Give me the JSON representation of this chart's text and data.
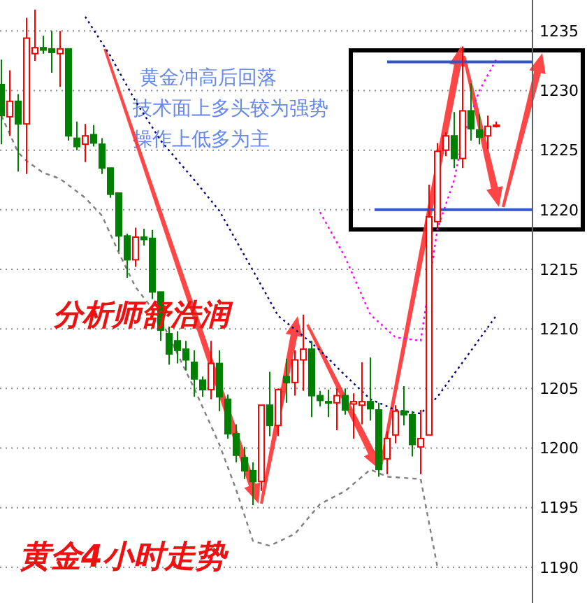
{
  "chart_data": {
    "type": "candlestick",
    "title": "黄金4小时走势",
    "annotations": [
      "黄金冲高后回落",
      "技术面上多头较为强势",
      "操作上低多为主",
      "分析师舒浩润"
    ],
    "categories": [
      null,
      null,
      null,
      null,
      null,
      null,
      null,
      null,
      null,
      null,
      null,
      null,
      null,
      null,
      null,
      null,
      null,
      null,
      null,
      null,
      null,
      null,
      null,
      null,
      null,
      null,
      null,
      null,
      null,
      null,
      null,
      null,
      null,
      null,
      null,
      null,
      null,
      null,
      null,
      null,
      null,
      null,
      null,
      null,
      null,
      null,
      null,
      null,
      null,
      null,
      null,
      null,
      null,
      null,
      null,
      null,
      null,
      null,
      null,
      null
    ],
    "ohlc": [
      [
        1230.5,
        1232.6,
        1225.5,
        1227.9
      ],
      [
        1227.8,
        1231.7,
        1226.2,
        1229.1
      ],
      [
        1229.1,
        1229.7,
        1223.2,
        1227.2
      ],
      [
        1227.2,
        1236.1,
        1223,
        1234.4
      ],
      [
        1233.1,
        1236.8,
        1232.5,
        1233.6
      ],
      [
        1233.6,
        1234.6,
        1233.1,
        1233.4
      ],
      [
        1233.5,
        1235,
        1231.5,
        1233.2
      ],
      [
        1233.1,
        1235,
        1230.3,
        1233.5
      ],
      [
        1233.5,
        1233.5,
        1225.8,
        1226.2
      ],
      [
        1226,
        1227.4,
        1225,
        1225.3
      ],
      [
        1225.5,
        1227.2,
        1224,
        1226.2
      ],
      [
        1226.3,
        1227.1,
        1225.3,
        1225.6
      ],
      [
        1225.5,
        1226,
        1223,
        1223.5
      ],
      [
        1223.5,
        1223.5,
        1221,
        1221.3
      ],
      [
        1221.4,
        1221.4,
        1216.5,
        1217.8
      ],
      [
        1217.8,
        1218,
        1214.3,
        1215.8
      ],
      [
        1215.8,
        1218.5,
        1215.2,
        1217.7
      ],
      [
        1217.7,
        1218.4,
        1217,
        1217.5
      ],
      [
        1217.6,
        1218.3,
        1212.5,
        1213.1
      ],
      [
        1213.1,
        1213.1,
        1209,
        1209.9
      ],
      [
        1209.6,
        1210.2,
        1207,
        1207.9
      ],
      [
        1209,
        1209.8,
        1207.1,
        1208.2
      ],
      [
        1208.3,
        1209,
        1206.5,
        1207.4
      ],
      [
        1207.2,
        1208.2,
        1204.3,
        1205.8
      ],
      [
        1205.7,
        1206,
        1204.3,
        1204.9
      ],
      [
        1204.9,
        1209,
        1204.1,
        1207.1
      ],
      [
        1207.1,
        1208.2,
        1203.1,
        1204.3
      ],
      [
        1204.1,
        1204.5,
        1200.8,
        1201.2
      ],
      [
        1201.2,
        1202,
        1198.8,
        1199.4
      ],
      [
        1199.2,
        1200.1,
        1197.4,
        1198.1
      ],
      [
        1198.1,
        1198.8,
        1195.2,
        1197.2
      ],
      [
        1197.2,
        1203.6,
        1196.4,
        1203.6
      ],
      [
        1203.6,
        1206.4,
        1201,
        1201.9
      ],
      [
        1201.9,
        1205,
        1201,
        1204.9
      ],
      [
        1206,
        1207.5,
        1203.8,
        1205.5
      ],
      [
        1205.5,
        1208.2,
        1204.4,
        1207.4
      ],
      [
        1207.4,
        1211.2,
        1204.8,
        1208.3
      ],
      [
        1208.3,
        1209,
        1202.6,
        1204.4
      ],
      [
        1204.4,
        1204.8,
        1203.5,
        1204
      ],
      [
        1203.9,
        1204.9,
        1202.6,
        1203.8
      ],
      [
        1203.8,
        1205,
        1201.5,
        1204.4
      ],
      [
        1204.4,
        1205,
        1202.8,
        1203.2
      ],
      [
        1203.7,
        1204.6,
        1200.8,
        1203.9
      ],
      [
        1203.6,
        1207.2,
        1202,
        1203.9
      ],
      [
        1203.9,
        1207.6,
        1202.3,
        1203.3
      ],
      [
        1203.2,
        1203.8,
        1197.6,
        1198.2
      ],
      [
        1199.1,
        1201.4,
        1197.8,
        1200.8
      ],
      [
        1201.1,
        1203.6,
        1200.4,
        1203.1
      ],
      [
        1203.1,
        1205.2,
        1201.9,
        1202.8
      ],
      [
        1202.8,
        1203.1,
        1199.3,
        1200.3
      ],
      [
        1200.1,
        1203.2,
        1197.8,
        1200.8
      ],
      [
        1201.1,
        1222.1,
        1201.1,
        1219.4
      ],
      [
        1219,
        1225.6,
        1218.5,
        1224.9
      ],
      [
        1225,
        1226.5,
        1224.5,
        1226.2
      ],
      [
        1226.2,
        1228.2,
        1223.5,
        1224.3
      ],
      [
        1224.3,
        1233.7,
        1223.5,
        1228.3
      ],
      [
        1228.3,
        1230.6,
        1225.8,
        1226.8
      ],
      [
        1226.7,
        1228,
        1225.5,
        1226.1
      ],
      [
        1226.2,
        1227.9,
        1225.1,
        1227
      ],
      [
        1227.1,
        1227.4,
        1226.9,
        1227.1
      ]
    ],
    "series": [
      {
        "type": "line",
        "color": "#000080",
        "line_style": "dotted",
        "values": [
          null,
          null,
          null,
          null,
          null,
          null,
          null,
          null,
          null,
          null,
          1236.2,
          null,
          null,
          1232.9,
          null,
          null,
          1229.1,
          null,
          null,
          1225.8,
          null,
          null,
          null,
          1222.5,
          null,
          null,
          1219.9,
          null,
          null,
          null,
          1214.9,
          null,
          null,
          1211.1,
          null,
          null,
          1209.4,
          null,
          1208.2,
          null,
          null,
          1206.1,
          null,
          null,
          1204.1,
          null,
          null,
          1203.2,
          null,
          null,
          1202.9,
          null,
          1204.3,
          null,
          null,
          1207.2,
          null,
          null,
          null,
          1211.1
        ]
      },
      {
        "type": "line",
        "color": "#ff00ff",
        "line_style": "dotted",
        "values": [
          null,
          null,
          null,
          null,
          null,
          null,
          null,
          null,
          null,
          null,
          null,
          null,
          null,
          null,
          null,
          null,
          null,
          null,
          null,
          null,
          null,
          null,
          null,
          null,
          null,
          null,
          null,
          null,
          null,
          null,
          null,
          null,
          null,
          null,
          null,
          null,
          null,
          null,
          1219.8,
          null,
          null,
          1216,
          null,
          null,
          1211.2,
          null,
          null,
          1209.3,
          null,
          null,
          1209,
          null,
          1218.4,
          null,
          1222.5,
          1226,
          null,
          1230,
          null,
          1232.6
        ]
      },
      {
        "type": "line",
        "color": "#808080",
        "line_style": "dashed",
        "values": [
          1227.9,
          null,
          1224.8,
          1224.1,
          null,
          1223.1,
          null,
          1222.6,
          null,
          null,
          1221,
          null,
          1219.5,
          null,
          1216.4,
          null,
          1213.5,
          null,
          null,
          1210.8,
          null,
          null,
          null,
          1205,
          null,
          null,
          1200.3,
          null,
          1196.5,
          null,
          1192.2,
          null,
          1191.8,
          null,
          null,
          1192.8,
          null,
          null,
          1195.3,
          null,
          null,
          1196.4,
          null,
          null,
          1198.2,
          null,
          1197.6,
          null,
          null,
          null,
          1197.4,
          null,
          1190,
          null,
          null,
          null,
          null,
          null,
          null,
          null
        ]
      }
    ],
    "ref_lines": [
      {
        "axis": "y",
        "value": 1232.4,
        "color": "#3355cc"
      },
      {
        "axis": "y",
        "value": 1220,
        "color": "#3355cc"
      }
    ],
    "ylim": [
      1187,
      1237.6
    ],
    "yticks": [
      1190,
      1195,
      1200,
      1205,
      1210,
      1215,
      1220,
      1225,
      1230,
      1235
    ],
    "grid": "y",
    "tick_labels": "y"
  }
}
